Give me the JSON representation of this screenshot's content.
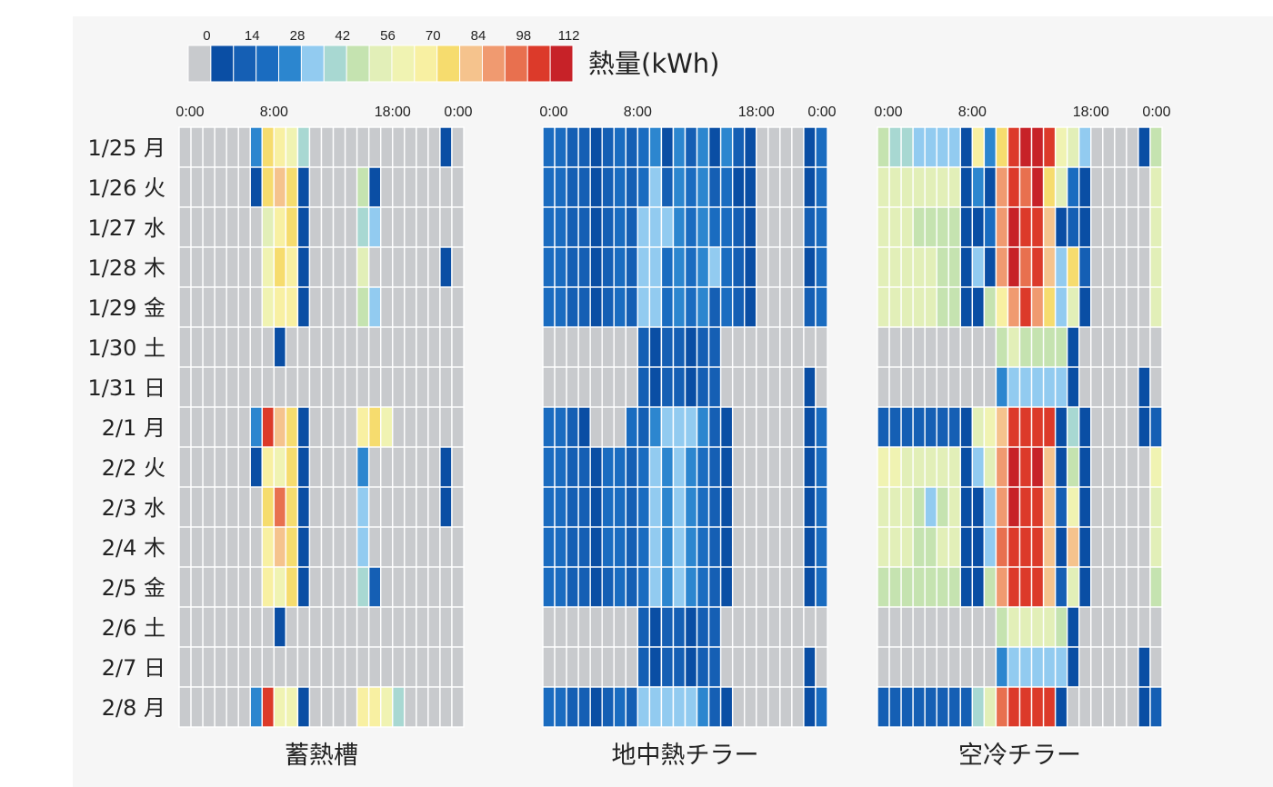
{
  "chart_data": {
    "type": "heatmap",
    "legend": {
      "title": "熱量(kWh)",
      "ticks": [
        "0",
        "14",
        "28",
        "42",
        "56",
        "70",
        "84",
        "98",
        "112"
      ],
      "bin_step": 7,
      "colors": [
        "#c8cacd",
        "#0a4ea4",
        "#155fb4",
        "#1a6cc0",
        "#2c86cf",
        "#92cbf0",
        "#a8d8d2",
        "#c5e3b0",
        "#e2efb8",
        "#f0f3b2",
        "#f8f0a2",
        "#f6dc6e",
        "#f5c38d",
        "#f09a70",
        "#e8704f",
        "#dc3a2a",
        "#c72228"
      ]
    },
    "y_labels": [
      "1/25 月",
      "1/26 火",
      "1/27 水",
      "1/28 木",
      "1/29 金",
      "1/30 土",
      "1/31 日",
      "2/1 月",
      "2/2 火",
      "2/3 水",
      "2/4 木",
      "2/5 金",
      "2/6 土",
      "2/7 日",
      "2/8 月"
    ],
    "x_tick_labels": [
      "0:00",
      "8:00",
      "18:00",
      "0:00"
    ],
    "x_ticks_hours": [
      0,
      8,
      18,
      24
    ],
    "slots_per_day": 24,
    "panels": [
      {
        "title": "蓄熱槽",
        "rows": [
          [
            0,
            0,
            0,
            0,
            0,
            0,
            4,
            11,
            10,
            9,
            6,
            0,
            0,
            0,
            0,
            0,
            0,
            0,
            0,
            0,
            0,
            0,
            1,
            0
          ],
          [
            0,
            0,
            0,
            0,
            0,
            0,
            1,
            11,
            12,
            11,
            1,
            0,
            0,
            0,
            0,
            7,
            1,
            0,
            0,
            0,
            0,
            0,
            0,
            0
          ],
          [
            0,
            0,
            0,
            0,
            0,
            0,
            0,
            8,
            10,
            11,
            1,
            0,
            0,
            0,
            0,
            6,
            5,
            0,
            0,
            0,
            0,
            0,
            0,
            0
          ],
          [
            0,
            0,
            0,
            0,
            0,
            0,
            0,
            9,
            11,
            10,
            1,
            0,
            0,
            0,
            0,
            8,
            0,
            0,
            0,
            0,
            0,
            0,
            1,
            0
          ],
          [
            0,
            0,
            0,
            0,
            0,
            0,
            0,
            9,
            10,
            10,
            1,
            0,
            0,
            0,
            0,
            7,
            5,
            0,
            0,
            0,
            0,
            0,
            0,
            0
          ],
          [
            0,
            0,
            0,
            0,
            0,
            0,
            0,
            0,
            1,
            0,
            0,
            0,
            0,
            0,
            0,
            0,
            0,
            0,
            0,
            0,
            0,
            0,
            0,
            0
          ],
          [
            0,
            0,
            0,
            0,
            0,
            0,
            0,
            0,
            0,
            0,
            0,
            0,
            0,
            0,
            0,
            0,
            0,
            0,
            0,
            0,
            0,
            0,
            0,
            0
          ],
          [
            0,
            0,
            0,
            0,
            0,
            0,
            4,
            15,
            12,
            11,
            1,
            0,
            0,
            0,
            0,
            10,
            11,
            9,
            0,
            0,
            0,
            0,
            0,
            0
          ],
          [
            0,
            0,
            0,
            0,
            0,
            0,
            1,
            10,
            9,
            11,
            1,
            0,
            0,
            0,
            0,
            4,
            0,
            0,
            0,
            0,
            0,
            0,
            1,
            0
          ],
          [
            0,
            0,
            0,
            0,
            0,
            0,
            0,
            11,
            14,
            11,
            1,
            0,
            0,
            0,
            0,
            5,
            0,
            0,
            0,
            0,
            0,
            0,
            1,
            0
          ],
          [
            0,
            0,
            0,
            0,
            0,
            0,
            0,
            10,
            12,
            11,
            1,
            0,
            0,
            0,
            0,
            5,
            0,
            0,
            0,
            0,
            0,
            0,
            0,
            0
          ],
          [
            0,
            0,
            0,
            0,
            0,
            0,
            0,
            10,
            9,
            11,
            1,
            0,
            0,
            0,
            0,
            6,
            2,
            0,
            0,
            0,
            0,
            0,
            0,
            0
          ],
          [
            0,
            0,
            0,
            0,
            0,
            0,
            0,
            0,
            1,
            0,
            0,
            0,
            0,
            0,
            0,
            0,
            0,
            0,
            0,
            0,
            0,
            0,
            0,
            0
          ],
          [
            0,
            0,
            0,
            0,
            0,
            0,
            0,
            0,
            0,
            0,
            0,
            0,
            0,
            0,
            0,
            0,
            0,
            0,
            0,
            0,
            0,
            0,
            0,
            0
          ],
          [
            0,
            0,
            0,
            0,
            0,
            0,
            4,
            15,
            9,
            9,
            1,
            0,
            0,
            0,
            0,
            10,
            10,
            9,
            6,
            0,
            0,
            0,
            0,
            0
          ]
        ]
      },
      {
        "title": "地中熱チラー",
        "rows": [
          [
            3,
            3,
            2,
            2,
            1,
            2,
            3,
            2,
            3,
            4,
            1,
            4,
            2,
            4,
            1,
            4,
            2,
            1,
            0,
            0,
            0,
            0,
            1,
            3
          ],
          [
            3,
            3,
            2,
            2,
            1,
            2,
            3,
            2,
            3,
            5,
            2,
            4,
            3,
            4,
            2,
            3,
            1,
            1,
            0,
            0,
            0,
            0,
            1,
            3
          ],
          [
            3,
            3,
            2,
            2,
            1,
            2,
            3,
            2,
            5,
            5,
            5,
            4,
            3,
            4,
            3,
            3,
            2,
            1,
            0,
            0,
            0,
            0,
            2,
            3
          ],
          [
            3,
            3,
            2,
            2,
            1,
            2,
            3,
            2,
            5,
            5,
            3,
            4,
            3,
            4,
            5,
            3,
            2,
            1,
            0,
            0,
            0,
            0,
            1,
            3
          ],
          [
            3,
            3,
            2,
            2,
            1,
            2,
            3,
            2,
            5,
            5,
            3,
            4,
            3,
            4,
            2,
            3,
            2,
            1,
            0,
            0,
            0,
            0,
            2,
            3
          ],
          [
            0,
            0,
            0,
            0,
            0,
            0,
            0,
            0,
            2,
            1,
            2,
            2,
            1,
            2,
            2,
            0,
            0,
            0,
            0,
            0,
            0,
            0,
            0,
            0
          ],
          [
            0,
            0,
            0,
            0,
            0,
            0,
            0,
            0,
            2,
            1,
            2,
            2,
            1,
            2,
            2,
            0,
            0,
            0,
            0,
            0,
            0,
            0,
            1,
            0
          ],
          [
            3,
            3,
            2,
            1,
            0,
            0,
            0,
            3,
            2,
            4,
            5,
            5,
            5,
            4,
            2,
            1,
            0,
            0,
            0,
            0,
            0,
            0,
            1,
            3
          ],
          [
            3,
            3,
            2,
            2,
            1,
            3,
            3,
            2,
            3,
            5,
            4,
            5,
            4,
            3,
            2,
            1,
            0,
            0,
            0,
            0,
            0,
            0,
            1,
            3
          ],
          [
            3,
            3,
            2,
            2,
            1,
            3,
            3,
            2,
            3,
            5,
            4,
            5,
            4,
            3,
            2,
            1,
            0,
            0,
            0,
            0,
            0,
            0,
            1,
            3
          ],
          [
            3,
            3,
            2,
            2,
            1,
            3,
            3,
            2,
            3,
            5,
            4,
            5,
            4,
            3,
            2,
            1,
            0,
            0,
            0,
            0,
            0,
            0,
            1,
            3
          ],
          [
            3,
            3,
            2,
            2,
            1,
            2,
            3,
            2,
            3,
            5,
            4,
            5,
            4,
            3,
            2,
            1,
            0,
            0,
            0,
            0,
            0,
            0,
            1,
            3
          ],
          [
            0,
            0,
            0,
            0,
            0,
            0,
            0,
            0,
            2,
            1,
            2,
            2,
            1,
            2,
            2,
            0,
            0,
            0,
            0,
            0,
            0,
            0,
            0,
            0
          ],
          [
            0,
            0,
            0,
            0,
            0,
            0,
            0,
            0,
            2,
            1,
            2,
            2,
            1,
            2,
            2,
            0,
            0,
            0,
            0,
            0,
            0,
            0,
            1,
            0
          ],
          [
            3,
            3,
            2,
            2,
            1,
            2,
            3,
            2,
            5,
            5,
            5,
            5,
            5,
            4,
            2,
            1,
            0,
            0,
            0,
            0,
            0,
            0,
            1,
            3
          ]
        ]
      },
      {
        "title": "空冷チラー",
        "rows": [
          [
            7,
            6,
            6,
            5,
            5,
            5,
            5,
            1,
            10,
            4,
            11,
            15,
            16,
            16,
            15,
            9,
            8,
            5,
            0,
            0,
            0,
            0,
            1,
            7
          ],
          [
            8,
            8,
            8,
            8,
            8,
            8,
            8,
            1,
            4,
            1,
            13,
            15,
            14,
            16,
            11,
            8,
            3,
            1,
            0,
            0,
            0,
            0,
            0,
            8
          ],
          [
            8,
            8,
            8,
            7,
            7,
            7,
            7,
            1,
            1,
            3,
            13,
            16,
            15,
            15,
            12,
            1,
            2,
            1,
            0,
            0,
            0,
            0,
            0,
            8
          ],
          [
            8,
            8,
            8,
            8,
            8,
            7,
            7,
            1,
            5,
            1,
            13,
            16,
            14,
            15,
            12,
            5,
            11,
            2,
            0,
            0,
            0,
            0,
            0,
            8
          ],
          [
            8,
            8,
            8,
            8,
            8,
            7,
            7,
            1,
            1,
            7,
            10,
            13,
            15,
            13,
            11,
            5,
            8,
            1,
            0,
            0,
            0,
            0,
            0,
            8
          ],
          [
            0,
            0,
            0,
            0,
            0,
            0,
            0,
            0,
            0,
            0,
            7,
            8,
            7,
            7,
            7,
            7,
            1,
            0,
            0,
            0,
            0,
            0,
            0,
            0
          ],
          [
            0,
            0,
            0,
            0,
            0,
            0,
            0,
            0,
            0,
            0,
            4,
            5,
            5,
            5,
            5,
            5,
            1,
            0,
            0,
            0,
            0,
            0,
            1,
            0
          ],
          [
            2,
            2,
            2,
            2,
            2,
            2,
            2,
            1,
            8,
            9,
            12,
            15,
            15,
            15,
            15,
            1,
            6,
            1,
            0,
            0,
            0,
            0,
            1,
            2
          ],
          [
            9,
            9,
            8,
            8,
            8,
            8,
            8,
            1,
            5,
            8,
            13,
            16,
            15,
            16,
            12,
            1,
            7,
            1,
            0,
            0,
            0,
            0,
            0,
            9
          ],
          [
            8,
            8,
            8,
            7,
            5,
            7,
            8,
            1,
            1,
            5,
            13,
            16,
            15,
            15,
            12,
            2,
            9,
            1,
            0,
            0,
            0,
            0,
            0,
            8
          ],
          [
            8,
            8,
            8,
            7,
            7,
            8,
            8,
            1,
            1,
            5,
            14,
            15,
            15,
            15,
            12,
            1,
            12,
            1,
            0,
            0,
            0,
            0,
            0,
            8
          ],
          [
            7,
            7,
            7,
            7,
            7,
            7,
            7,
            1,
            1,
            7,
            13,
            15,
            15,
            15,
            12,
            2,
            8,
            1,
            0,
            0,
            0,
            0,
            0,
            7
          ],
          [
            0,
            0,
            0,
            0,
            0,
            0,
            0,
            0,
            0,
            0,
            7,
            8,
            8,
            8,
            8,
            7,
            1,
            0,
            0,
            0,
            0,
            0,
            0,
            0
          ],
          [
            0,
            0,
            0,
            0,
            0,
            0,
            0,
            0,
            0,
            0,
            4,
            5,
            5,
            5,
            5,
            5,
            1,
            0,
            0,
            0,
            0,
            0,
            1,
            0
          ],
          [
            2,
            2,
            2,
            2,
            2,
            2,
            2,
            2,
            6,
            8,
            14,
            15,
            15,
            15,
            15,
            1,
            0,
            0,
            0,
            0,
            0,
            0,
            1,
            2
          ]
        ]
      }
    ]
  }
}
